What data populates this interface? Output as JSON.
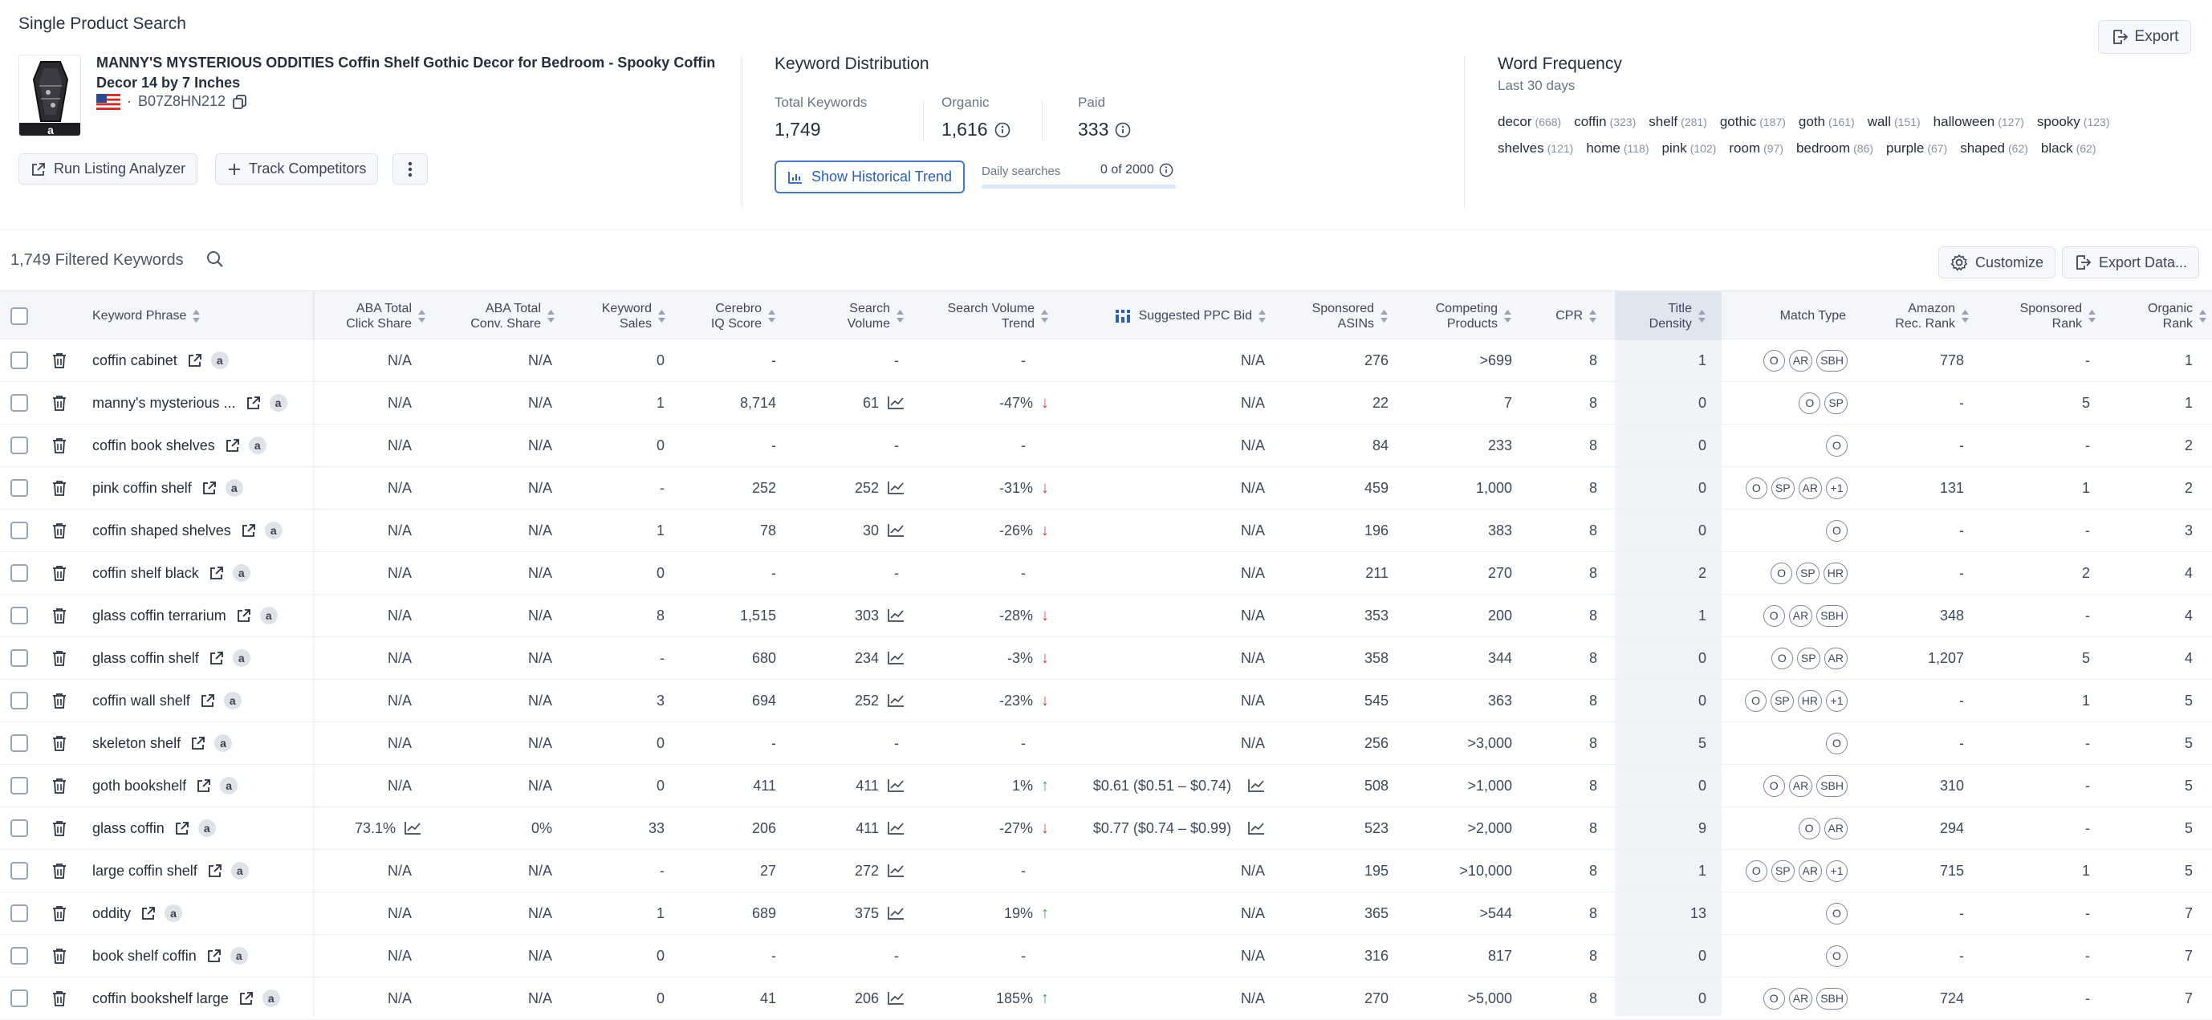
{
  "header": {
    "title": "Single Product Search",
    "export_label": "Export",
    "product": {
      "title": "MANNY'S MYSTERIOUS ODDITIES Coffin Shelf Gothic Decor for Bedroom - Spooky Coffin Decor 14 by 7 Inches",
      "asin": "B07Z8HN212",
      "marketplace": "US"
    },
    "buttons": {
      "listing_analyzer": "Run Listing Analyzer",
      "track_competitors": "Track Competitors"
    }
  },
  "keyword_distribution": {
    "title": "Keyword Distribution",
    "total_label": "Total Keywords",
    "total_value": "1,749",
    "organic_label": "Organic",
    "organic_value": "1,616",
    "paid_label": "Paid",
    "paid_value": "333",
    "historical_label": "Show Historical Trend",
    "daily_label": "Daily searches",
    "daily_count": "0 of 2000",
    "daily_fraction": 0
  },
  "word_frequency": {
    "title": "Word Frequency",
    "subtitle": "Last 30 days",
    "line1": [
      {
        "w": "decor",
        "n": "(668)"
      },
      {
        "w": "coffin",
        "n": "(323)"
      },
      {
        "w": "shelf",
        "n": "(281)"
      },
      {
        "w": "gothic",
        "n": "(187)"
      },
      {
        "w": "goth",
        "n": "(161)"
      },
      {
        "w": "wall",
        "n": "(151)"
      },
      {
        "w": "halloween",
        "n": "(127)"
      },
      {
        "w": "spooky",
        "n": "(123)"
      }
    ],
    "line2": [
      {
        "w": "shelves",
        "n": "(121)"
      },
      {
        "w": "home",
        "n": "(118)"
      },
      {
        "w": "pink",
        "n": "(102)"
      },
      {
        "w": "room",
        "n": "(97)"
      },
      {
        "w": "bedroom",
        "n": "(86)"
      },
      {
        "w": "purple",
        "n": "(67)"
      },
      {
        "w": "shaped",
        "n": "(62)"
      },
      {
        "w": "black",
        "n": "(62)"
      }
    ]
  },
  "toolbar": {
    "filtered_count": "1,749 Filtered Keywords",
    "customize_label": "Customize",
    "export_data_label": "Export Data..."
  },
  "table": {
    "headers": {
      "keyword": "Keyword Phrase",
      "aba_click_1": "ABA Total",
      "aba_click_2": "Click Share",
      "aba_conv_1": "ABA Total",
      "aba_conv_2": "Conv. Share",
      "kw_sales_1": "Keyword",
      "kw_sales_2": "Sales",
      "cerebro_1": "Cerebro",
      "cerebro_2": "IQ Score",
      "sv_1": "Search",
      "sv_2": "Volume",
      "svt_1": "Search Volume",
      "svt_2": "Trend",
      "ppc": "Suggested PPC Bid",
      "sp_asins_1": "Sponsored",
      "sp_asins_2": "ASINs",
      "comp_1": "Competing",
      "comp_2": "Products",
      "cpr": "CPR",
      "td_1": "Title",
      "td_2": "Density",
      "match": "Match Type",
      "amz_1": "Amazon",
      "amz_2": "Rec. Rank",
      "spr_1": "Sponsored",
      "spr_2": "Rank",
      "org_1": "Organic",
      "org_2": "Rank"
    },
    "rows": [
      {
        "kw": "coffin cabinet",
        "click": "N/A",
        "clickChart": false,
        "conv": "N/A",
        "sales": "0",
        "iq": "-",
        "sv": "-",
        "svChart": false,
        "trend": "-",
        "dir": "",
        "ppc": "N/A",
        "ppcChart": false,
        "asins": "276",
        "comp": ">699",
        "cpr": "8",
        "td": "1",
        "match": [
          "O",
          "AR",
          "SBH"
        ],
        "amz": "778",
        "spr": "-",
        "org": "1"
      },
      {
        "kw": "manny's mysterious ...",
        "click": "N/A",
        "clickChart": false,
        "conv": "N/A",
        "sales": "1",
        "iq": "8,714",
        "sv": "61",
        "svChart": true,
        "trend": "-47%",
        "dir": "down",
        "ppc": "N/A",
        "ppcChart": false,
        "asins": "22",
        "comp": "7",
        "cpr": "8",
        "td": "0",
        "match": [
          "O",
          "SP"
        ],
        "amz": "-",
        "spr": "5",
        "org": "1"
      },
      {
        "kw": "coffin book shelves",
        "click": "N/A",
        "clickChart": false,
        "conv": "N/A",
        "sales": "0",
        "iq": "-",
        "sv": "-",
        "svChart": false,
        "trend": "-",
        "dir": "",
        "ppc": "N/A",
        "ppcChart": false,
        "asins": "84",
        "comp": "233",
        "cpr": "8",
        "td": "0",
        "match": [
          "O"
        ],
        "amz": "-",
        "spr": "-",
        "org": "2"
      },
      {
        "kw": "pink coffin shelf",
        "click": "N/A",
        "clickChart": false,
        "conv": "N/A",
        "sales": "-",
        "iq": "252",
        "sv": "252",
        "svChart": true,
        "trend": "-31%",
        "dir": "down",
        "ppc": "N/A",
        "ppcChart": false,
        "asins": "459",
        "comp": "1,000",
        "cpr": "8",
        "td": "0",
        "match": [
          "O",
          "SP",
          "AR",
          "+1"
        ],
        "amz": "131",
        "spr": "1",
        "org": "2"
      },
      {
        "kw": "coffin shaped shelves",
        "click": "N/A",
        "clickChart": false,
        "conv": "N/A",
        "sales": "1",
        "iq": "78",
        "sv": "30",
        "svChart": true,
        "trend": "-26%",
        "dir": "down",
        "ppc": "N/A",
        "ppcChart": false,
        "asins": "196",
        "comp": "383",
        "cpr": "8",
        "td": "0",
        "match": [
          "O"
        ],
        "amz": "-",
        "spr": "-",
        "org": "3"
      },
      {
        "kw": "coffin shelf black",
        "click": "N/A",
        "clickChart": false,
        "conv": "N/A",
        "sales": "0",
        "iq": "-",
        "sv": "-",
        "svChart": false,
        "trend": "-",
        "dir": "",
        "ppc": "N/A",
        "ppcChart": false,
        "asins": "211",
        "comp": "270",
        "cpr": "8",
        "td": "2",
        "match": [
          "O",
          "SP",
          "HR"
        ],
        "amz": "-",
        "spr": "2",
        "org": "4"
      },
      {
        "kw": "glass coffin terrarium",
        "click": "N/A",
        "clickChart": false,
        "conv": "N/A",
        "sales": "8",
        "iq": "1,515",
        "sv": "303",
        "svChart": true,
        "trend": "-28%",
        "dir": "down",
        "ppc": "N/A",
        "ppcChart": false,
        "asins": "353",
        "comp": "200",
        "cpr": "8",
        "td": "1",
        "match": [
          "O",
          "AR",
          "SBH"
        ],
        "amz": "348",
        "spr": "-",
        "org": "4"
      },
      {
        "kw": "glass coffin shelf",
        "click": "N/A",
        "clickChart": false,
        "conv": "N/A",
        "sales": "-",
        "iq": "680",
        "sv": "234",
        "svChart": true,
        "trend": "-3%",
        "dir": "down",
        "ppc": "N/A",
        "ppcChart": false,
        "asins": "358",
        "comp": "344",
        "cpr": "8",
        "td": "0",
        "match": [
          "O",
          "SP",
          "AR"
        ],
        "amz": "1,207",
        "spr": "5",
        "org": "4"
      },
      {
        "kw": "coffin wall shelf",
        "click": "N/A",
        "clickChart": false,
        "conv": "N/A",
        "sales": "3",
        "iq": "694",
        "sv": "252",
        "svChart": true,
        "trend": "-23%",
        "dir": "down",
        "ppc": "N/A",
        "ppcChart": false,
        "asins": "545",
        "comp": "363",
        "cpr": "8",
        "td": "0",
        "match": [
          "O",
          "SP",
          "HR",
          "+1"
        ],
        "amz": "-",
        "spr": "1",
        "org": "5"
      },
      {
        "kw": "skeleton shelf",
        "click": "N/A",
        "clickChart": false,
        "conv": "N/A",
        "sales": "0",
        "iq": "-",
        "sv": "-",
        "svChart": false,
        "trend": "-",
        "dir": "",
        "ppc": "N/A",
        "ppcChart": false,
        "asins": "256",
        "comp": ">3,000",
        "cpr": "8",
        "td": "5",
        "match": [
          "O"
        ],
        "amz": "-",
        "spr": "-",
        "org": "5"
      },
      {
        "kw": "goth bookshelf",
        "click": "N/A",
        "clickChart": false,
        "conv": "N/A",
        "sales": "0",
        "iq": "411",
        "sv": "411",
        "svChart": true,
        "trend": "1%",
        "dir": "up",
        "ppc": "$0.61 ($0.51 – $0.74)",
        "ppcChart": true,
        "asins": "508",
        "comp": ">1,000",
        "cpr": "8",
        "td": "0",
        "match": [
          "O",
          "AR",
          "SBH"
        ],
        "amz": "310",
        "spr": "-",
        "org": "5"
      },
      {
        "kw": "glass coffin",
        "click": "73.1%",
        "clickChart": true,
        "conv": "0%",
        "sales": "33",
        "iq": "206",
        "sv": "411",
        "svChart": true,
        "trend": "-27%",
        "dir": "down",
        "ppc": "$0.77 ($0.74 – $0.99)",
        "ppcChart": true,
        "asins": "523",
        "comp": ">2,000",
        "cpr": "8",
        "td": "9",
        "match": [
          "O",
          "AR"
        ],
        "amz": "294",
        "spr": "-",
        "org": "5"
      },
      {
        "kw": "large coffin shelf",
        "click": "N/A",
        "clickChart": false,
        "conv": "N/A",
        "sales": "-",
        "iq": "27",
        "sv": "272",
        "svChart": true,
        "trend": "-",
        "dir": "",
        "ppc": "N/A",
        "ppcChart": false,
        "asins": "195",
        "comp": ">10,000",
        "cpr": "8",
        "td": "1",
        "match": [
          "O",
          "SP",
          "AR",
          "+1"
        ],
        "amz": "715",
        "spr": "1",
        "org": "5"
      },
      {
        "kw": "oddity",
        "click": "N/A",
        "clickChart": false,
        "conv": "N/A",
        "sales": "1",
        "iq": "689",
        "sv": "375",
        "svChart": true,
        "trend": "19%",
        "dir": "up",
        "ppc": "N/A",
        "ppcChart": false,
        "asins": "365",
        "comp": ">544",
        "cpr": "8",
        "td": "13",
        "match": [
          "O"
        ],
        "amz": "-",
        "spr": "-",
        "org": "7"
      },
      {
        "kw": "book shelf coffin",
        "click": "N/A",
        "clickChart": false,
        "conv": "N/A",
        "sales": "0",
        "iq": "-",
        "sv": "-",
        "svChart": false,
        "trend": "-",
        "dir": "",
        "ppc": "N/A",
        "ppcChart": false,
        "asins": "316",
        "comp": "817",
        "cpr": "8",
        "td": "0",
        "match": [
          "O"
        ],
        "amz": "-",
        "spr": "-",
        "org": "7"
      },
      {
        "kw": "coffin bookshelf large",
        "click": "N/A",
        "clickChart": false,
        "conv": "N/A",
        "sales": "0",
        "iq": "41",
        "sv": "206",
        "svChart": true,
        "trend": "185%",
        "dir": "up",
        "ppc": "N/A",
        "ppcChart": false,
        "asins": "270",
        "comp": ">5,000",
        "cpr": "8",
        "td": "0",
        "match": [
          "O",
          "AR",
          "SBH"
        ],
        "amz": "724",
        "spr": "-",
        "org": "7"
      }
    ]
  },
  "icons": {
    "export": "export-icon",
    "copy": "copy-icon",
    "flag": "us-flag-icon",
    "listing": "external-link-icon",
    "plus": "plus-icon",
    "more": "kebab-icon",
    "info": "info-icon",
    "chart": "line-chart-icon",
    "search": "search-icon",
    "gear": "gear-icon",
    "trash": "trash-icon",
    "amazon": "amazon-badge-icon",
    "sort": "sort-icon",
    "arrow_up": "arrow-up-icon",
    "arrow_down": "arrow-down-icon",
    "bars": "bars-icon"
  },
  "colors": {
    "accent": "#4a78c2",
    "trend_down": "#d8453b",
    "trend_up": "#3aa36a",
    "header_bg": "#f4f6f9",
    "highlight_col": "#dfe6f1"
  }
}
